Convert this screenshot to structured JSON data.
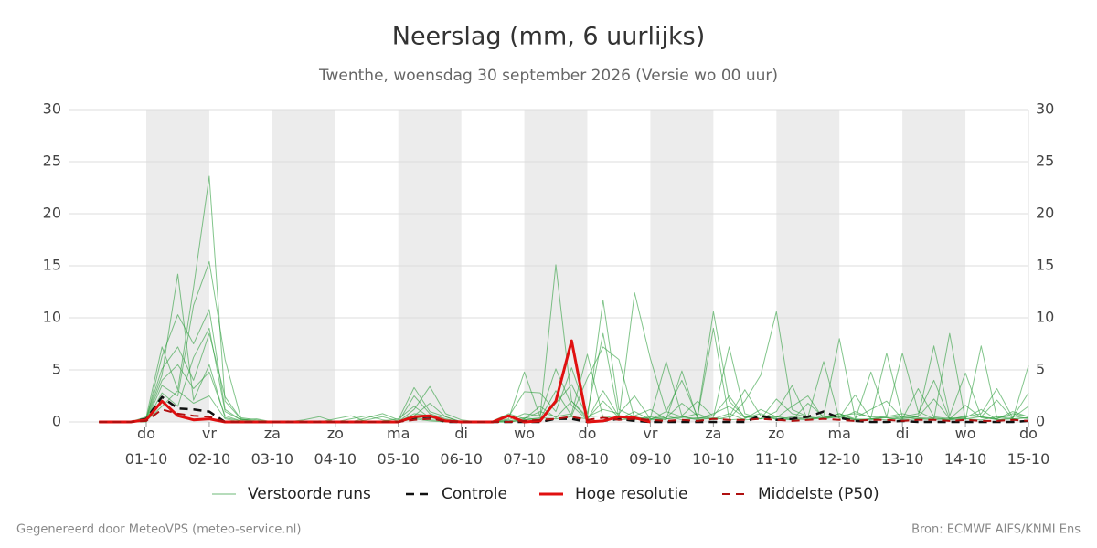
{
  "chart_data": {
    "type": "line",
    "title": "Neerslag (mm, 6 uurlijks)",
    "subtitle": "Twenthe, woensdag 30 september 2026 (Versie wo 00 uur)",
    "footer_left": "Gegenereerd door MeteoVPS (meteo-service.nl)",
    "footer_right": "Bron: ECMWF AIFS/KNMI Ens",
    "x": [
      -18,
      -12,
      -6,
      0,
      6,
      12,
      18,
      24,
      30,
      36,
      42,
      48,
      54,
      60,
      66,
      72,
      78,
      84,
      90,
      96,
      102,
      108,
      114,
      120,
      126,
      132,
      138,
      144,
      150,
      156,
      162,
      168,
      174,
      180,
      186,
      192,
      198,
      204,
      210,
      216,
      222,
      228,
      234,
      240,
      246,
      252,
      258,
      264,
      270,
      276,
      282,
      288,
      294,
      300,
      306,
      312,
      318,
      324,
      330,
      336
    ],
    "xlim": [
      -29.6,
      336
    ],
    "xticks": [
      {
        "value": 0,
        "label": "do\n01-10"
      },
      {
        "value": 24,
        "label": "vr\n02-10"
      },
      {
        "value": 48,
        "label": "za\n03-10"
      },
      {
        "value": 72,
        "label": "zo\n04-10"
      },
      {
        "value": 96,
        "label": "ma\n05-10"
      },
      {
        "value": 120,
        "label": "di\n06-10"
      },
      {
        "value": 144,
        "label": "wo\n07-10"
      },
      {
        "value": 168,
        "label": "do\n08-10"
      },
      {
        "value": 192,
        "label": "vr\n09-10"
      },
      {
        "value": 216,
        "label": "za\n10-10"
      },
      {
        "value": 240,
        "label": "zo\n11-10"
      },
      {
        "value": 264,
        "label": "ma\n12-10"
      },
      {
        "value": 288,
        "label": "di\n13-10"
      },
      {
        "value": 312,
        "label": "wo\n14-10"
      },
      {
        "value": 336,
        "label": "do\n15-10"
      }
    ],
    "ylim": [
      0,
      30
    ],
    "yticks": [
      0,
      5,
      10,
      15,
      20,
      25,
      30
    ],
    "grid": true,
    "legend": "bottom",
    "series": [
      {
        "name": "Verstoorde runs",
        "color": "#2e9e3e",
        "dash": "solid",
        "width": 1,
        "values": [
          [
            0,
            0,
            0,
            0.5,
            7.2,
            3.1,
            12.9,
            23.6,
            2.0,
            0.3,
            0.1,
            0,
            0,
            0.2,
            0.5,
            0,
            0,
            0.4,
            0.8,
            0.2,
            3.3,
            1.0,
            0.5,
            0,
            0,
            0,
            0.3,
            4.8,
            0.5,
            15.1,
            2.0,
            0.3,
            11.7,
            1.2,
            0.5,
            0.2,
            1.0,
            0.5,
            0.3,
            0.8,
            1.5,
            0.4,
            0.8,
            0.2,
            0.5,
            0.3,
            0.4,
            0.8,
            0.3,
            0.2,
            0.5,
            0.8,
            0.4,
            0.3,
            0.2,
            0.6,
            0.5,
            0.3,
            0.8,
            0.5
          ],
          [
            0,
            0,
            0,
            0.3,
            4.5,
            14.2,
            2.1,
            5.5,
            0.4,
            0.1,
            0,
            0,
            0,
            0,
            0.1,
            0,
            0.3,
            0.6,
            0.2,
            0,
            1.2,
            3.4,
            0.8,
            0.2,
            0,
            0,
            0.5,
            2.9,
            2.8,
            1.0,
            5.2,
            0.8,
            8.5,
            0.4,
            12.4,
            6.1,
            1.0,
            4.0,
            0.5,
            9.0,
            0.3,
            2.0,
            4.5,
            10.6,
            1.2,
            0.5,
            0.3,
            0.8,
            0.2,
            4.8,
            0.5,
            6.6,
            1.0,
            0.3,
            8.5,
            0.2,
            7.3,
            0.4,
            0.6,
            0.3
          ],
          [
            0,
            0,
            0,
            0.2,
            6.3,
            10.3,
            7.5,
            10.8,
            1.2,
            0.2,
            0.3,
            0,
            0,
            0,
            0,
            0.3,
            0.6,
            0,
            0,
            0,
            2.5,
            0.8,
            0.3,
            0,
            0,
            0,
            0,
            0.2,
            0.3,
            3.0,
            0.6,
            4.2,
            7.2,
            6.0,
            0.3,
            0.4,
            5.8,
            0.6,
            2.0,
            0.5,
            7.2,
            0.8,
            0.3,
            1.0,
            3.5,
            0.2,
            0.6,
            8.0,
            0.4,
            1.2,
            2.0,
            0.3,
            0.5,
            7.3,
            0.6,
            4.7,
            0.5,
            2.1,
            0.3,
            5.4
          ],
          [
            0,
            0,
            0,
            0.1,
            3.5,
            2.5,
            11.2,
            15.4,
            6.0,
            0.4,
            0.2,
            0,
            0.1,
            0,
            0,
            0,
            0,
            0.2,
            0.5,
            0.1,
            0.6,
            1.8,
            0.5,
            0,
            0,
            0.1,
            0.8,
            0.3,
            1.5,
            0.4,
            2.0,
            0.5,
            1.2,
            0.8,
            2.5,
            0.3,
            0.4,
            1.8,
            0.6,
            10.6,
            2.0,
            0.5,
            0.3,
            2.2,
            0.8,
            0.5,
            5.8,
            0.3,
            1.0,
            0.4,
            6.6,
            0.5,
            0.8,
            4.0,
            0.3,
            0.5,
            0.8,
            3.2,
            0.4,
            1.5
          ],
          [
            0,
            0,
            0,
            0.4,
            5.1,
            7.2,
            4.0,
            8.5,
            2.4,
            0.3,
            0,
            0,
            0,
            0,
            0,
            0,
            0,
            0,
            0.1,
            0.3,
            1.5,
            0.4,
            0.2,
            0,
            0,
            0,
            0.2,
            0.8,
            0.6,
            5.1,
            1.6,
            0.2,
            3.0,
            0.5,
            0.6,
            1.2,
            0.3,
            0.4,
            0.8,
            0.2,
            0.5,
            3.1,
            0.6,
            0.4,
            1.5,
            2.5,
            0.3,
            0.6,
            0.8,
            0.5,
            0.4,
            0.3,
            3.2,
            0.5,
            0.3,
            0.4,
            1.2,
            0.2,
            0.4,
            2.8
          ],
          [
            0,
            0,
            0,
            0,
            2.8,
            1.5,
            6.2,
            9.0,
            1.0,
            0.2,
            0,
            0,
            0,
            0,
            0,
            0,
            0,
            0,
            0,
            0,
            0.8,
            0.6,
            0.2,
            0,
            0,
            0,
            0.1,
            0.4,
            0.2,
            1.8,
            3.6,
            0.5,
            0.6,
            0.3,
            1.0,
            0.2,
            0.3,
            0.5,
            0.2,
            0.4,
            0.2,
            0.3,
            1.2,
            0.5,
            0.3,
            0.2,
            0.4,
            0.6,
            0.2,
            0.3,
            0.2,
            0.5,
            0.3,
            0.2,
            0.4,
            0.3,
            0.2,
            0.5,
            0.3,
            0.4
          ],
          [
            0,
            0,
            0,
            0.2,
            4.0,
            5.5,
            3.2,
            4.8,
            0.6,
            0.1,
            0,
            0,
            0,
            0,
            0,
            0,
            0,
            0,
            0,
            0,
            0.4,
            0.2,
            0.1,
            0,
            0,
            0,
            0,
            0.3,
            1.0,
            0.5,
            0.8,
            6.5,
            0.4,
            0.2,
            0.3,
            0.5,
            0.2,
            4.9,
            0.3,
            0.6,
            2.5,
            0.4,
            0.6,
            0.3,
            0.2,
            1.8,
            0.5,
            0.4,
            2.6,
            0.3,
            0.6,
            0.4,
            0.5,
            2.2,
            0.3,
            1.6,
            0.4,
            0.3,
            1.0,
            0.5
          ],
          [
            0,
            0,
            0,
            0.1,
            1.5,
            3.0,
            1.8,
            2.5,
            0.3,
            0,
            0,
            0,
            0,
            0,
            0,
            0,
            0,
            0,
            0,
            0,
            0.3,
            0.1,
            0,
            0,
            0,
            0,
            0,
            0.2,
            0.4,
            0.3,
            0.5,
            0.3,
            2.0,
            0.4,
            0.2,
            0.3,
            0.6,
            0.2,
            0.4,
            0.3,
            0.8,
            0.2,
            0.3,
            0.5,
            0.2,
            0.4,
            0.3,
            0.5,
            0.2,
            0.3,
            0.4,
            0.2,
            0.3,
            0.4,
            0.2,
            0.3,
            0.5,
            0.2,
            0.3,
            0.4
          ]
        ]
      },
      {
        "name": "Controle",
        "color": "#111111",
        "dash": "dashed",
        "width": 2.5,
        "values": [
          0,
          0,
          0,
          0.3,
          2.4,
          1.3,
          1.2,
          1.0,
          0,
          0,
          0,
          0,
          0,
          0,
          0,
          0,
          0,
          0,
          0,
          0,
          0.4,
          0.5,
          0,
          0,
          0,
          0,
          0,
          0,
          0,
          0.3,
          0.3,
          0,
          0.1,
          0.3,
          0.1,
          0,
          0,
          0,
          0,
          0,
          0,
          0,
          0.6,
          0.2,
          0.3,
          0.5,
          1.0,
          0.4,
          0.1,
          0,
          0,
          0.1,
          0,
          0,
          0,
          0,
          0,
          0,
          0,
          0.1
        ]
      },
      {
        "name": "Hoge resolutie",
        "color": "#e01010",
        "dash": "solid",
        "width": 3,
        "values": [
          0,
          0,
          0,
          0.2,
          2.0,
          0.6,
          0.2,
          0.3,
          0,
          0,
          0,
          0,
          0,
          0,
          0,
          0,
          0,
          0,
          0,
          0,
          0.5,
          0.6,
          0.1,
          0,
          0,
          0,
          0.6,
          0,
          0.1,
          2.0,
          7.8,
          0,
          0.1,
          0.5,
          0.4,
          0,
          null,
          null,
          null,
          null,
          null,
          null,
          null,
          null,
          null,
          null,
          null,
          null,
          null,
          null,
          null,
          null,
          null,
          null,
          null,
          null,
          null,
          null,
          null,
          null
        ]
      },
      {
        "name": "Middelste (P50)",
        "color": "#b01010",
        "dash": "dashed",
        "width": 2,
        "values": [
          0,
          0,
          0,
          0.1,
          1.2,
          0.8,
          0.6,
          0.5,
          0,
          0,
          0,
          0,
          0,
          0,
          0,
          0,
          0,
          0,
          0,
          0,
          0.2,
          0.3,
          0.1,
          0,
          0,
          0,
          0,
          0.1,
          0.2,
          0.3,
          0.5,
          0.2,
          0.4,
          0.2,
          0.3,
          0.2,
          0.1,
          0.2,
          0.1,
          0.3,
          0.2,
          0.2,
          0.3,
          0.2,
          0.1,
          0.2,
          0.3,
          0.2,
          0.1,
          0.2,
          0.2,
          0.1,
          0.2,
          0.2,
          0.1,
          0.2,
          0.1,
          0.1,
          0.2,
          0.1
        ]
      }
    ]
  }
}
